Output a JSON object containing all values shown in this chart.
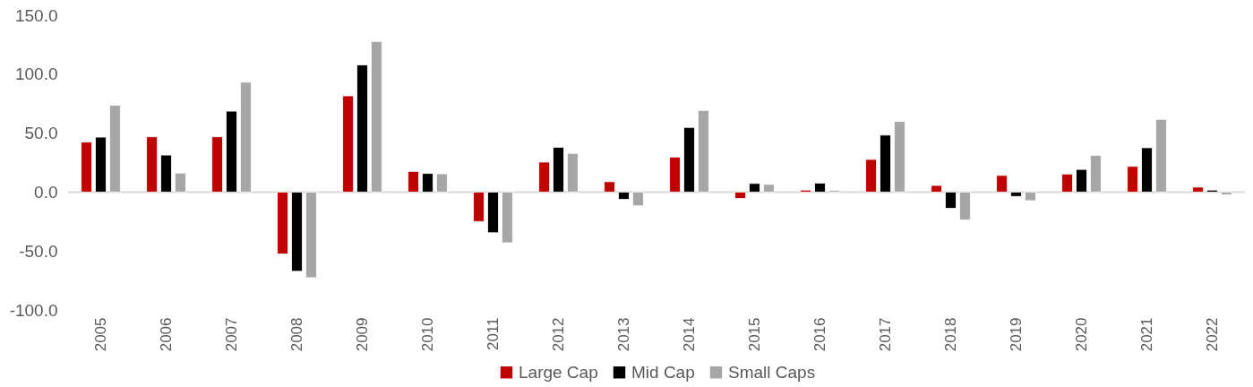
{
  "chart_data": {
    "type": "bar",
    "categories": [
      "2005",
      "2006",
      "2007",
      "2008",
      "2009",
      "2010",
      "2011",
      "2012",
      "2013",
      "2014",
      "2015",
      "2016",
      "2017",
      "2018",
      "2019",
      "2020",
      "2021",
      "2022"
    ],
    "series": [
      {
        "name": "Large Cap",
        "color": "#c00000",
        "values": [
          42.4,
          46.9,
          46.9,
          -52.5,
          81.6,
          17.5,
          -25.0,
          25.4,
          8.8,
          29.7,
          -5.4,
          1.7,
          27.7,
          5.6,
          14.1,
          15.3,
          21.8,
          4.2
        ]
      },
      {
        "name": "Mid Cap",
        "color": "#000000",
        "values": [
          46.6,
          31.4,
          68.6,
          -67.2,
          107.9,
          15.8,
          -34.5,
          38.0,
          -6.2,
          54.8,
          7.3,
          7.6,
          48.3,
          -13.8,
          -3.7,
          19.2,
          37.6,
          1.7
        ]
      },
      {
        "name": "Small Caps",
        "color": "#a6a6a6",
        "values": [
          73.7,
          16.1,
          93.2,
          -72.6,
          127.7,
          15.5,
          -43.0,
          32.8,
          -11.6,
          69.2,
          6.5,
          1.4,
          59.9,
          -23.7,
          -7.3,
          31.1,
          61.6,
          -2.3
        ]
      }
    ],
    "ylim": [
      -100,
      150
    ],
    "yticks": [
      {
        "value": -100,
        "label": "-100.0"
      },
      {
        "value": -50,
        "label": "-50.0"
      },
      {
        "value": 0,
        "label": "0.0"
      },
      {
        "value": 50,
        "label": "50.0"
      },
      {
        "value": 100,
        "label": "100.0"
      },
      {
        "value": 150,
        "label": "150.0"
      }
    ],
    "ref_lines": [
      {
        "axis": "y",
        "value": 0,
        "color": "#d9d9d9"
      }
    ],
    "grid": false,
    "legend": "bottom"
  }
}
